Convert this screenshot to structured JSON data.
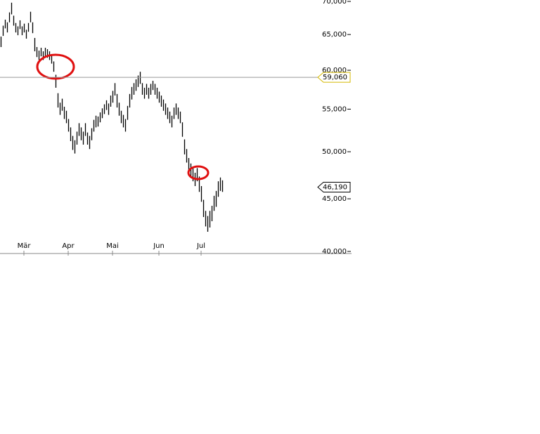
{
  "chart_data": {
    "type": "hilo",
    "log_scale": true,
    "color": "#000000",
    "xlim": [
      0,
      106
    ],
    "xticks": [
      {
        "value": 11,
        "label": "Mär"
      },
      {
        "value": 32,
        "label": "Apr"
      },
      {
        "value": 53,
        "label": "Mai"
      },
      {
        "value": 75,
        "label": "Jun"
      },
      {
        "value": 95,
        "label": "Jul"
      }
    ],
    "ylim": [
      40000,
      70000
    ],
    "yticks": [
      {
        "value": 40000,
        "label": "40,000"
      },
      {
        "value": 45000,
        "label": "45,000"
      },
      {
        "value": 50000,
        "label": "50,000"
      },
      {
        "value": 55000,
        "label": "55,000"
      },
      {
        "value": 60000,
        "label": "60,000"
      },
      {
        "value": 65000,
        "label": "65,000"
      },
      {
        "value": 70000,
        "label": "70,000"
      }
    ],
    "level_line": {
      "value": 59060,
      "label": "59,060"
    },
    "last_price": {
      "value": 46190,
      "label": "46,190"
    },
    "high": [
      64700,
      66300,
      67200,
      66800,
      68300,
      69800,
      67800,
      66700,
      66200,
      67100,
      66200,
      66600,
      65700,
      66700,
      68400,
      66800,
      64500,
      63200,
      62700,
      63100,
      62600,
      63100,
      62900,
      62600,
      62200,
      61200,
      59400,
      57000,
      55800,
      56300,
      55300,
      54800,
      53800,
      52800,
      51800,
      51300,
      52300,
      53300,
      52800,
      52300,
      53300,
      52200,
      51800,
      52700,
      53700,
      54200,
      54100,
      54600,
      55100,
      55600,
      56100,
      55700,
      56700,
      57300,
      58300,
      56900,
      55800,
      54800,
      54300,
      53800,
      55400,
      56900,
      57800,
      58300,
      58800,
      59300,
      59800,
      58300,
      57700,
      58200,
      57700,
      58200,
      58600,
      58200,
      57700,
      57200,
      56700,
      56200,
      55700,
      55200,
      54700,
      54200,
      55200,
      55700,
      55200,
      54700,
      53400,
      51400,
      50300,
      49300,
      48700,
      48200,
      47700,
      48200,
      47300,
      46300,
      44900,
      43800,
      43300,
      43800,
      44300,
      45300,
      45800,
      46800,
      47200,
      46900
    ],
    "low": [
      63200,
      64800,
      65900,
      65300,
      66800,
      68000,
      66300,
      65300,
      64900,
      65800,
      64900,
      65300,
      64400,
      65400,
      66800,
      65200,
      62600,
      61800,
      61400,
      61900,
      61400,
      61900,
      61700,
      61400,
      60900,
      59800,
      57700,
      55200,
      54300,
      54800,
      53800,
      53300,
      52300,
      51200,
      50200,
      49800,
      50800,
      51800,
      51300,
      50800,
      51800,
      50800,
      50300,
      51300,
      52300,
      52800,
      52900,
      53400,
      53900,
      54400,
      54900,
      54300,
      55300,
      55800,
      56700,
      55200,
      54200,
      53300,
      52800,
      52300,
      53700,
      55200,
      56200,
      56800,
      57300,
      57800,
      58200,
      56800,
      56300,
      56800,
      56300,
      56800,
      57400,
      56800,
      56300,
      55800,
      55300,
      54800,
      54300,
      53800,
      53300,
      52800,
      53800,
      54300,
      53800,
      53300,
      51700,
      49700,
      48800,
      47800,
      47300,
      46800,
      46300,
      46800,
      45700,
      44700,
      43200,
      42300,
      41800,
      42200,
      42800,
      43800,
      44200,
      45200,
      45800,
      45700
    ]
  }
}
